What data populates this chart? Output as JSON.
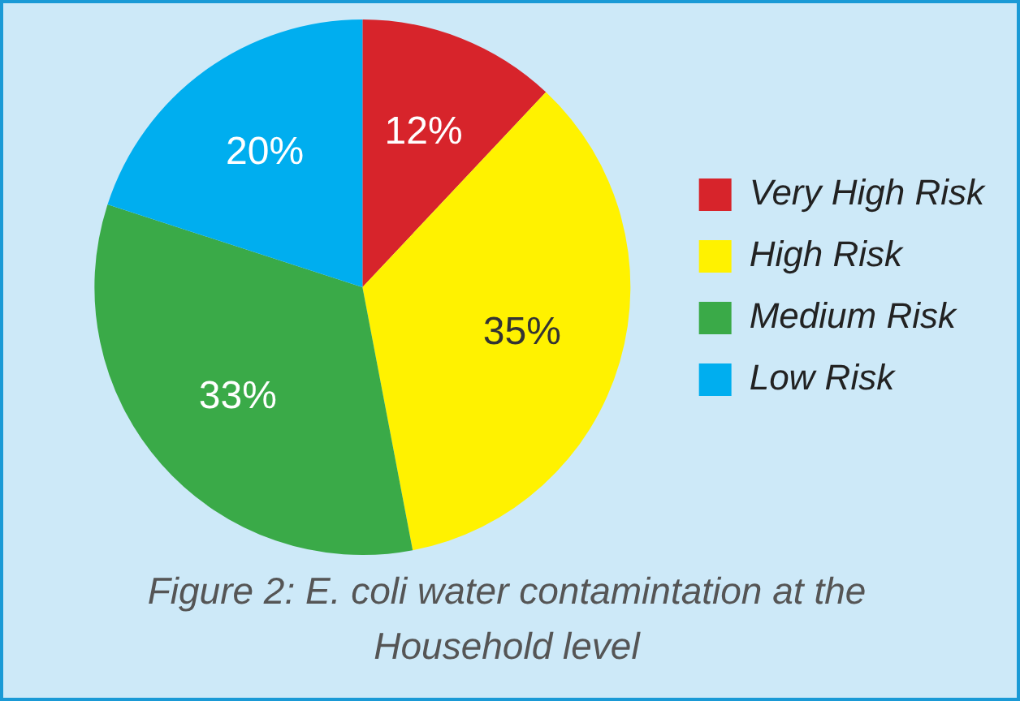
{
  "chart_data": {
    "type": "pie",
    "title": "Figure 2: E. coli water contamintation at the Household level",
    "categories": [
      "Very High Risk",
      "High Risk",
      "Medium Risk",
      "Low Risk"
    ],
    "values": [
      12,
      35,
      33,
      20
    ],
    "value_labels": [
      "12%",
      "35%",
      "33%",
      "20%"
    ],
    "colors": [
      "#d7242b",
      "#fff200",
      "#3aaa48",
      "#00aeef"
    ],
    "legend": "right"
  }
}
